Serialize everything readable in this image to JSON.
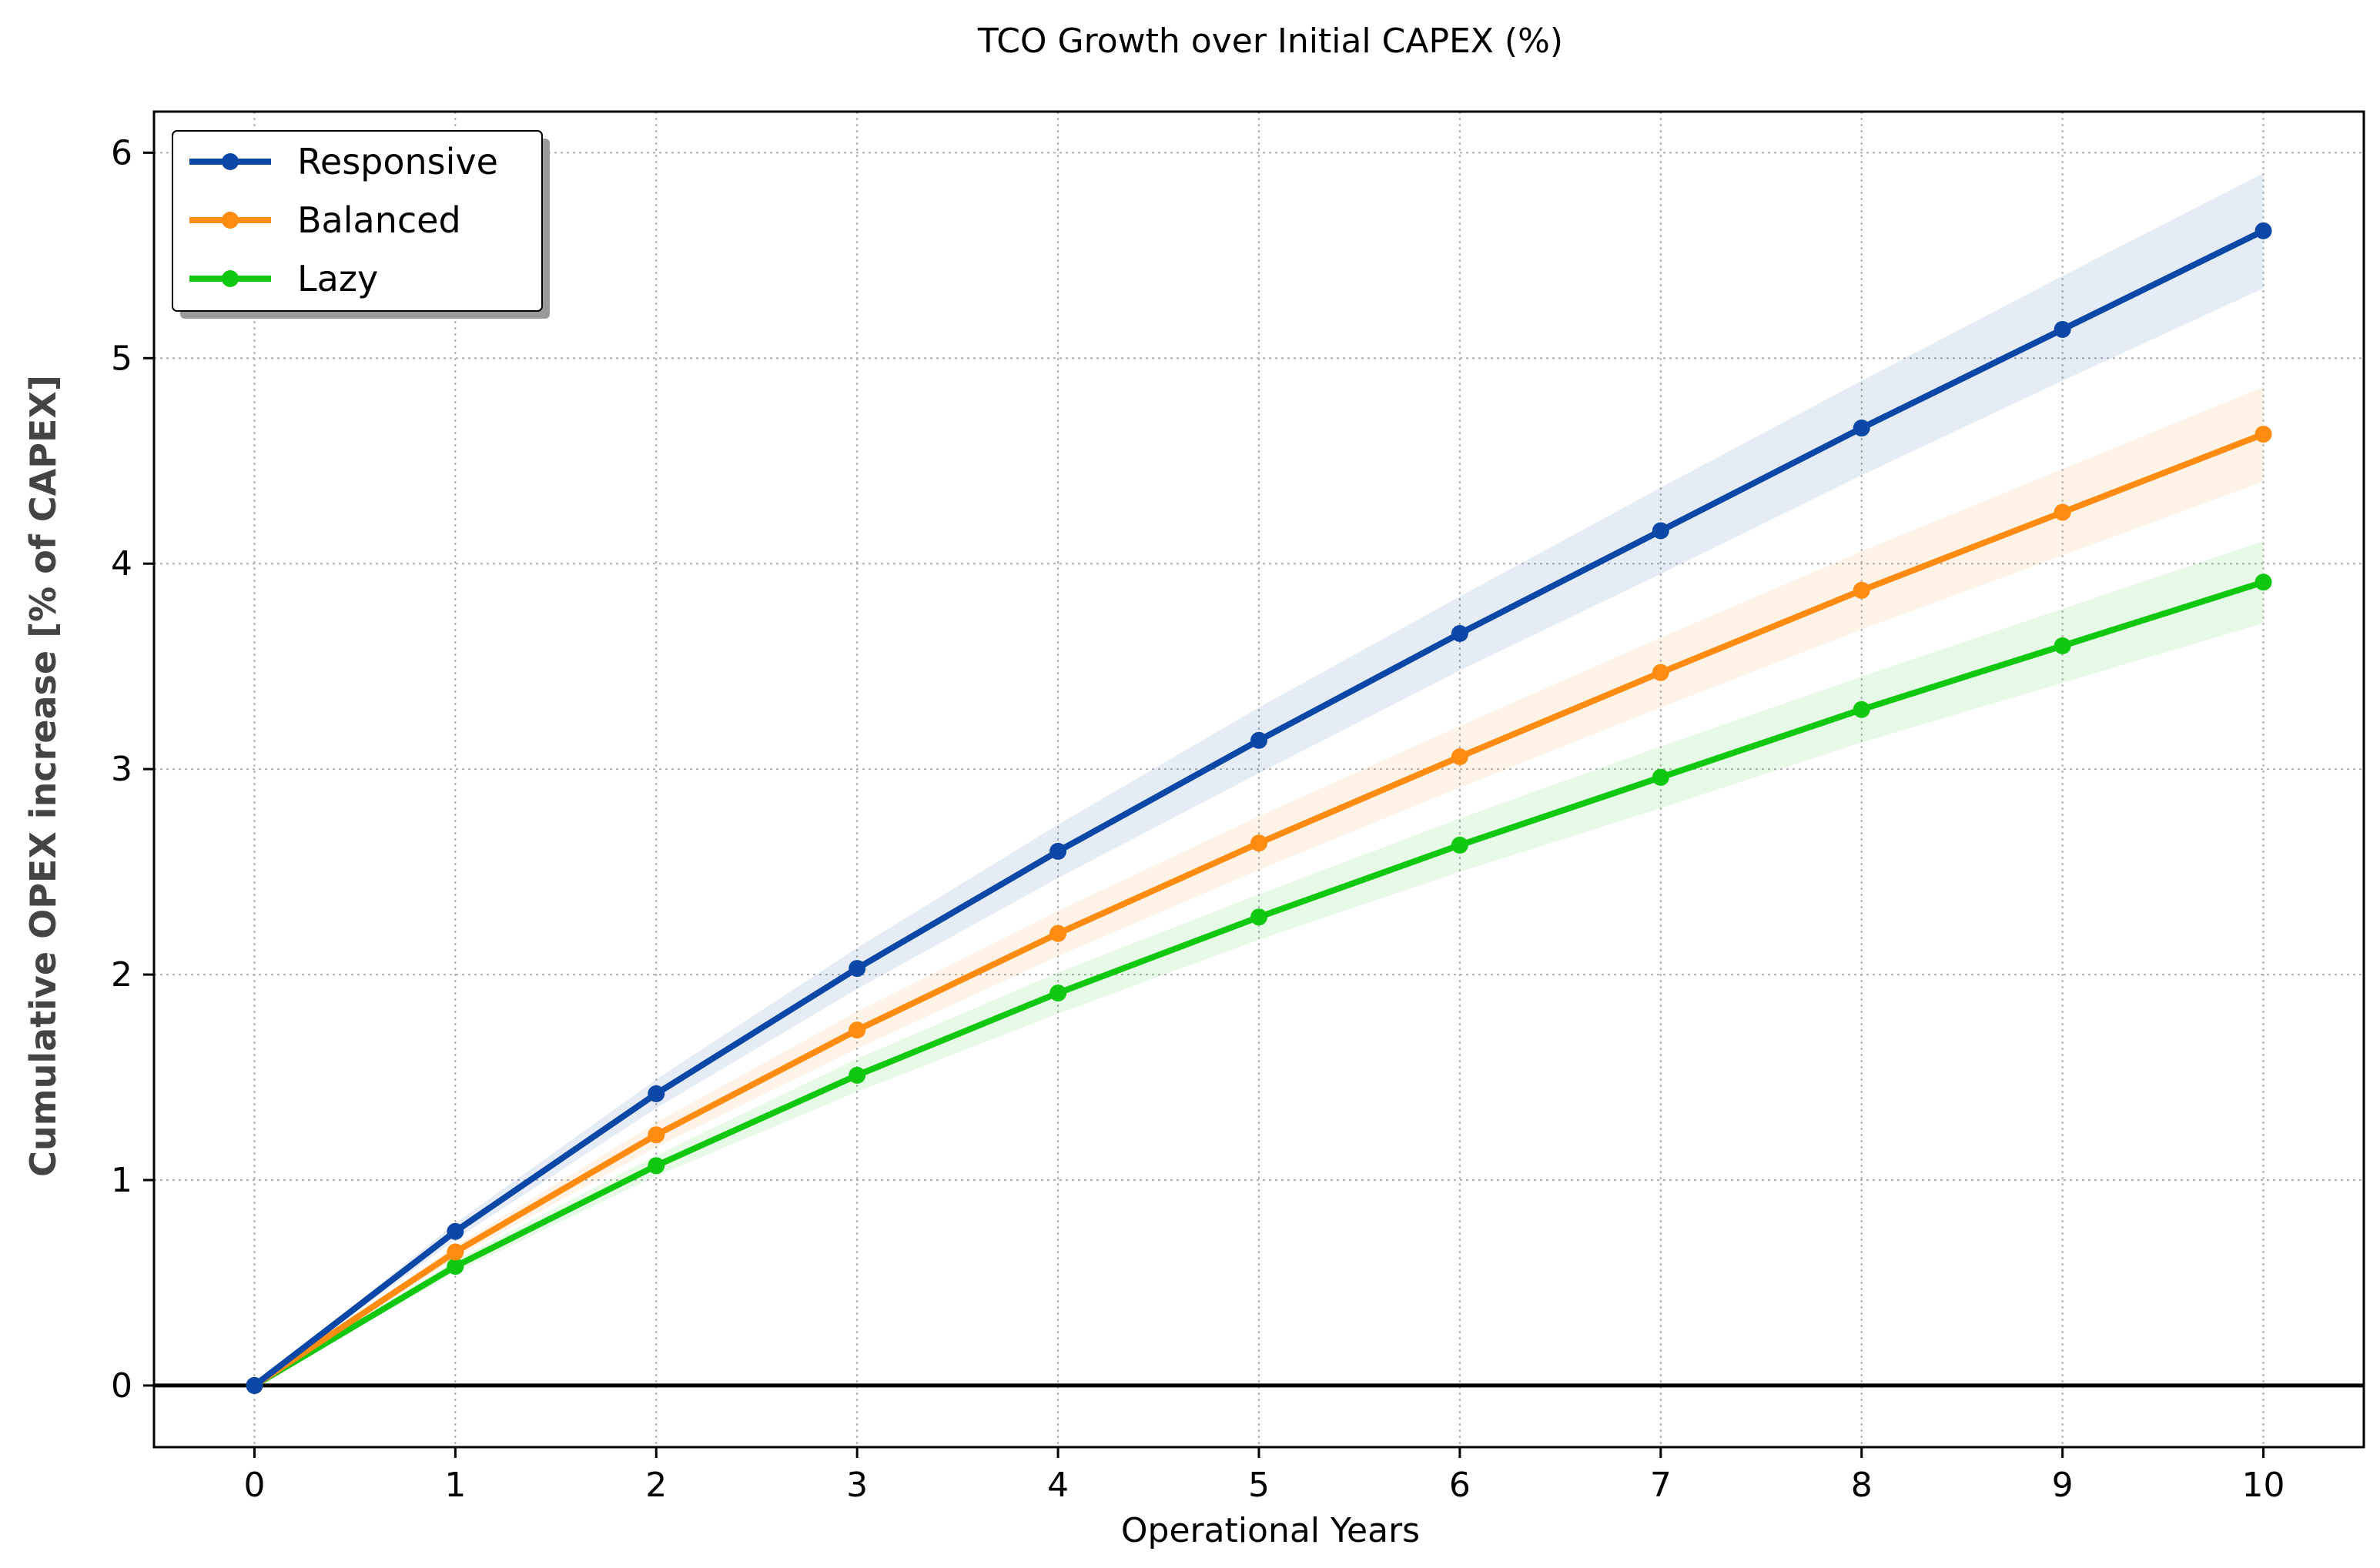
{
  "chart_data": {
    "type": "line",
    "title": "TCO Growth over Initial CAPEX (%)",
    "xlabel": "Operational Years",
    "ylabel": "Cumulative OPEX increase [% of CAPEX]",
    "xlim": [
      -0.5,
      10.5
    ],
    "ylim": [
      -0.3,
      6.2
    ],
    "x": [
      0,
      1,
      2,
      3,
      4,
      5,
      6,
      7,
      8,
      9,
      10
    ],
    "xticks": [
      0,
      1,
      2,
      3,
      4,
      5,
      6,
      7,
      8,
      9,
      10
    ],
    "yticks": [
      0,
      1,
      2,
      3,
      4,
      5,
      6
    ],
    "grid": true,
    "legend_position": "top-left",
    "series": [
      {
        "name": "Responsive",
        "color": "#0a47a6",
        "values": [
          0,
          0.75,
          1.42,
          2.03,
          2.6,
          3.14,
          3.66,
          4.16,
          4.66,
          5.14,
          5.62
        ],
        "band_lower": [
          0,
          0.71,
          1.35,
          1.93,
          2.47,
          2.98,
          3.48,
          3.95,
          4.43,
          4.89,
          5.34
        ],
        "band_upper": [
          0,
          0.79,
          1.49,
          2.13,
          2.73,
          3.3,
          3.84,
          4.37,
          4.89,
          5.4,
          5.9
        ]
      },
      {
        "name": "Balanced",
        "color": "#ff8c10",
        "values": [
          0,
          0.65,
          1.22,
          1.73,
          2.2,
          2.64,
          3.06,
          3.47,
          3.87,
          4.25,
          4.63
        ],
        "band_lower": [
          0,
          0.62,
          1.16,
          1.64,
          2.09,
          2.51,
          2.91,
          3.3,
          3.68,
          4.04,
          4.4
        ],
        "band_upper": [
          0,
          0.68,
          1.28,
          1.82,
          2.31,
          2.77,
          3.21,
          3.64,
          4.06,
          4.46,
          4.86
        ]
      },
      {
        "name": "Lazy",
        "color": "#10c810",
        "values": [
          0,
          0.58,
          1.07,
          1.51,
          1.91,
          2.28,
          2.63,
          2.96,
          3.29,
          3.6,
          3.91
        ],
        "band_lower": [
          0,
          0.55,
          1.02,
          1.43,
          1.81,
          2.17,
          2.5,
          2.81,
          3.13,
          3.42,
          3.71
        ],
        "band_upper": [
          0,
          0.61,
          1.12,
          1.59,
          2.01,
          2.39,
          2.76,
          3.11,
          3.45,
          3.78,
          4.11
        ]
      }
    ]
  }
}
